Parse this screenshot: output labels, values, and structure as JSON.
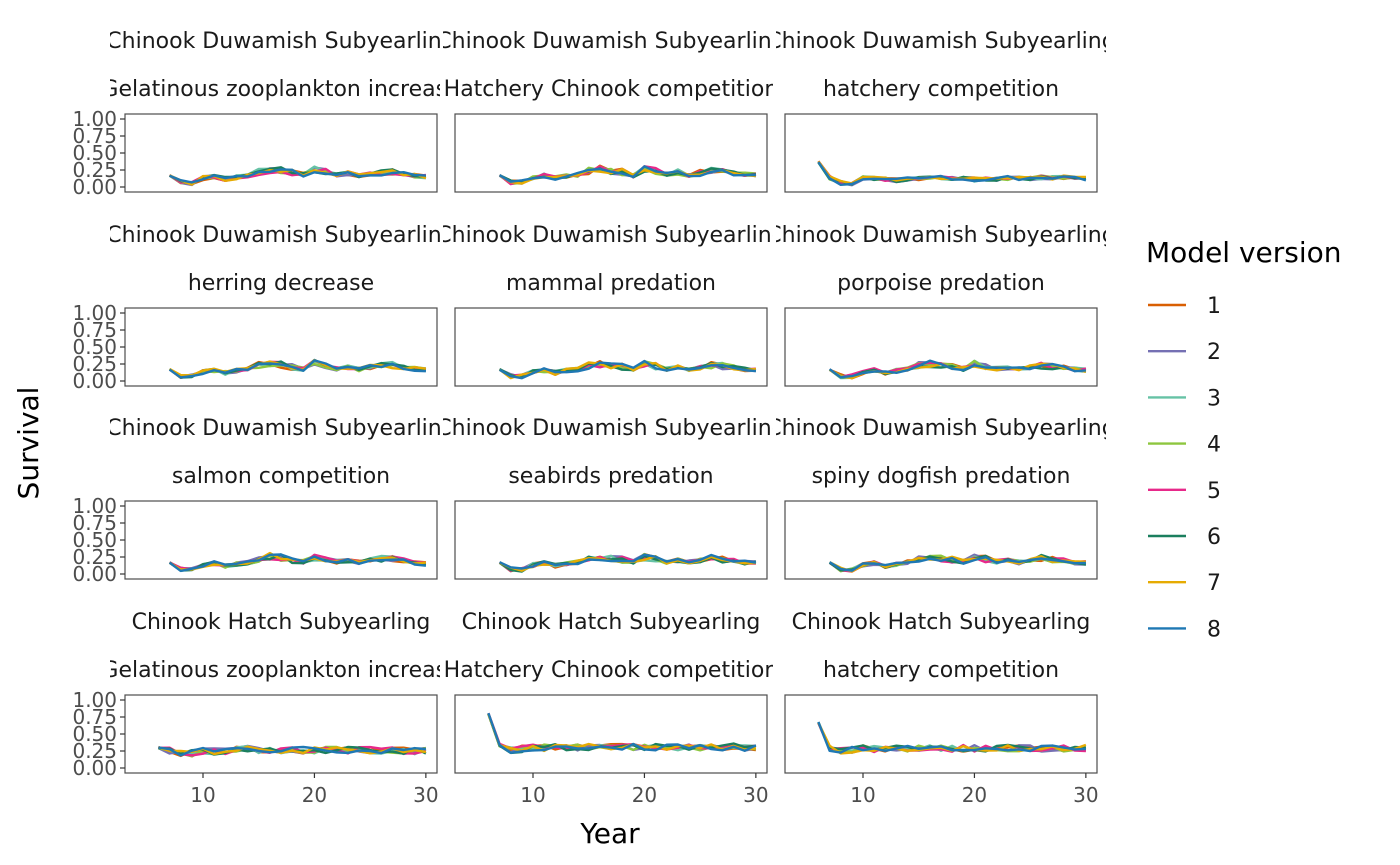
{
  "chart_data": {
    "type": "line",
    "xlabel": "Year",
    "ylabel": "Survival",
    "xlim": [
      3,
      31
    ],
    "ylim": [
      0,
      1
    ],
    "x_ticks": [
      10,
      20,
      30
    ],
    "y_ticks": [
      "0.00",
      "0.25",
      "0.50",
      "0.75",
      "1.00"
    ],
    "grid": false,
    "legend": {
      "title": "Model version",
      "placement": "right",
      "labels": [
        "1",
        "2",
        "3",
        "4",
        "5",
        "6",
        "7",
        "8"
      ],
      "colors": [
        "#D95F02",
        "#7570B3",
        "#66C2A5",
        "#8DC63F",
        "#E7298A",
        "#1B7F5E",
        "#E6AB02",
        "#1F78B4"
      ]
    },
    "panels": [
      {
        "strip1": "Chinook Duwamish Subyearling",
        "strip2": "Gelatinous zooplankton increase",
        "x": [
          7,
          8,
          9,
          10,
          11,
          12,
          13,
          14,
          15,
          16,
          17,
          18,
          19,
          20,
          21,
          22,
          23,
          24,
          25,
          26,
          27,
          28,
          29,
          30
        ],
        "base": [
          0.17,
          0.07,
          0.06,
          0.13,
          0.15,
          0.12,
          0.14,
          0.16,
          0.22,
          0.25,
          0.24,
          0.21,
          0.18,
          0.25,
          0.22,
          0.18,
          0.2,
          0.17,
          0.2,
          0.22,
          0.23,
          0.2,
          0.17,
          0.15
        ]
      },
      {
        "strip1": "Chinook Duwamish Subyearling",
        "strip2": "Hatchery Chinook competition",
        "x": [
          7,
          8,
          9,
          10,
          11,
          12,
          13,
          14,
          15,
          16,
          17,
          18,
          19,
          20,
          21,
          22,
          23,
          24,
          25,
          26,
          27,
          28,
          29,
          30
        ],
        "base": [
          0.17,
          0.07,
          0.08,
          0.14,
          0.17,
          0.13,
          0.16,
          0.18,
          0.24,
          0.27,
          0.24,
          0.22,
          0.17,
          0.26,
          0.23,
          0.19,
          0.21,
          0.18,
          0.21,
          0.25,
          0.24,
          0.2,
          0.18,
          0.17
        ]
      },
      {
        "strip1": "Chinook Duwamish Subyearling",
        "strip2": "hatchery competition",
        "x": [
          6,
          7,
          8,
          9,
          10,
          11,
          12,
          13,
          14,
          15,
          16,
          17,
          18,
          19,
          20,
          21,
          22,
          23,
          24,
          25,
          26,
          27,
          28,
          29,
          30
        ],
        "base": [
          0.37,
          0.14,
          0.06,
          0.05,
          0.13,
          0.13,
          0.11,
          0.1,
          0.12,
          0.13,
          0.14,
          0.14,
          0.13,
          0.12,
          0.11,
          0.11,
          0.12,
          0.13,
          0.13,
          0.13,
          0.14,
          0.14,
          0.14,
          0.13,
          0.12
        ]
      },
      {
        "strip1": "Chinook Duwamish Subyearling",
        "strip2": "herring decrease",
        "x": [
          7,
          8,
          9,
          10,
          11,
          12,
          13,
          14,
          15,
          16,
          17,
          18,
          19,
          20,
          21,
          22,
          23,
          24,
          25,
          26,
          27,
          28,
          29,
          30
        ],
        "base": [
          0.17,
          0.07,
          0.07,
          0.13,
          0.16,
          0.12,
          0.15,
          0.17,
          0.23,
          0.26,
          0.24,
          0.21,
          0.18,
          0.26,
          0.22,
          0.18,
          0.2,
          0.17,
          0.21,
          0.24,
          0.23,
          0.2,
          0.18,
          0.17
        ]
      },
      {
        "strip1": "Chinook Duwamish Subyearling",
        "strip2": "mammal predation",
        "x": [
          7,
          8,
          9,
          10,
          11,
          12,
          13,
          14,
          15,
          16,
          17,
          18,
          19,
          20,
          21,
          22,
          23,
          24,
          25,
          26,
          27,
          28,
          29,
          30
        ],
        "base": [
          0.17,
          0.07,
          0.07,
          0.13,
          0.16,
          0.12,
          0.15,
          0.17,
          0.23,
          0.25,
          0.23,
          0.21,
          0.18,
          0.25,
          0.22,
          0.18,
          0.2,
          0.17,
          0.2,
          0.23,
          0.22,
          0.2,
          0.17,
          0.16
        ]
      },
      {
        "strip1": "Chinook Duwamish Subyearling",
        "strip2": "porpoise predation",
        "x": [
          7,
          8,
          9,
          10,
          11,
          12,
          13,
          14,
          15,
          16,
          17,
          18,
          19,
          20,
          21,
          22,
          23,
          24,
          25,
          26,
          27,
          28,
          29,
          30
        ],
        "base": [
          0.17,
          0.07,
          0.07,
          0.13,
          0.16,
          0.12,
          0.15,
          0.17,
          0.23,
          0.25,
          0.23,
          0.21,
          0.18,
          0.25,
          0.22,
          0.18,
          0.2,
          0.17,
          0.2,
          0.23,
          0.22,
          0.2,
          0.17,
          0.16
        ]
      },
      {
        "strip1": "Chinook Duwamish Subyearling",
        "strip2": "salmon competition",
        "x": [
          7,
          8,
          9,
          10,
          11,
          12,
          13,
          14,
          15,
          16,
          17,
          18,
          19,
          20,
          21,
          22,
          23,
          24,
          25,
          26,
          27,
          28,
          29,
          30
        ],
        "base": [
          0.17,
          0.07,
          0.06,
          0.13,
          0.16,
          0.12,
          0.15,
          0.17,
          0.23,
          0.26,
          0.24,
          0.21,
          0.18,
          0.25,
          0.22,
          0.18,
          0.2,
          0.17,
          0.2,
          0.23,
          0.22,
          0.2,
          0.17,
          0.15
        ]
      },
      {
        "strip1": "Chinook Duwamish Subyearling",
        "strip2": "seabirds predation",
        "x": [
          7,
          8,
          9,
          10,
          11,
          12,
          13,
          14,
          15,
          16,
          17,
          18,
          19,
          20,
          21,
          22,
          23,
          24,
          25,
          26,
          27,
          28,
          29,
          30
        ],
        "base": [
          0.17,
          0.07,
          0.06,
          0.13,
          0.16,
          0.12,
          0.15,
          0.17,
          0.23,
          0.25,
          0.23,
          0.21,
          0.18,
          0.25,
          0.22,
          0.18,
          0.2,
          0.17,
          0.2,
          0.23,
          0.22,
          0.2,
          0.17,
          0.16
        ]
      },
      {
        "strip1": "Chinook Duwamish Subyearling",
        "strip2": "spiny dogfish predation",
        "x": [
          7,
          8,
          9,
          10,
          11,
          12,
          13,
          14,
          15,
          16,
          17,
          18,
          19,
          20,
          21,
          22,
          23,
          24,
          25,
          26,
          27,
          28,
          29,
          30
        ],
        "base": [
          0.17,
          0.07,
          0.06,
          0.13,
          0.16,
          0.12,
          0.15,
          0.17,
          0.23,
          0.25,
          0.23,
          0.21,
          0.18,
          0.25,
          0.22,
          0.18,
          0.2,
          0.17,
          0.2,
          0.23,
          0.22,
          0.2,
          0.17,
          0.16
        ]
      },
      {
        "strip1": "Chinook Hatch Subyearling",
        "strip2": "Gelatinous zooplankton increase",
        "x": [
          6,
          7,
          8,
          9,
          10,
          11,
          12,
          13,
          14,
          15,
          16,
          17,
          18,
          19,
          20,
          21,
          22,
          23,
          24,
          25,
          26,
          27,
          28,
          29,
          30
        ],
        "base": [
          0.3,
          0.25,
          0.22,
          0.22,
          0.25,
          0.24,
          0.25,
          0.27,
          0.28,
          0.27,
          0.26,
          0.26,
          0.26,
          0.26,
          0.26,
          0.26,
          0.26,
          0.26,
          0.26,
          0.26,
          0.26,
          0.26,
          0.25,
          0.25,
          0.25
        ]
      },
      {
        "strip1": "Chinook Hatch Subyearling",
        "strip2": "Hatchery Chinook competition",
        "x": [
          6,
          7,
          8,
          9,
          10,
          11,
          12,
          13,
          14,
          15,
          16,
          17,
          18,
          19,
          20,
          21,
          22,
          23,
          24,
          25,
          26,
          27,
          28,
          29,
          30
        ],
        "base": [
          0.8,
          0.31,
          0.26,
          0.28,
          0.3,
          0.3,
          0.31,
          0.31,
          0.3,
          0.31,
          0.31,
          0.31,
          0.31,
          0.31,
          0.31,
          0.31,
          0.31,
          0.31,
          0.3,
          0.31,
          0.31,
          0.31,
          0.31,
          0.3,
          0.3
        ]
      },
      {
        "strip1": "Chinook Hatch Subyearling",
        "strip2": "hatchery competition",
        "x": [
          6,
          7,
          8,
          9,
          10,
          11,
          12,
          13,
          14,
          15,
          16,
          17,
          18,
          19,
          20,
          21,
          22,
          23,
          24,
          25,
          26,
          27,
          28,
          29,
          30
        ],
        "base": [
          0.67,
          0.3,
          0.25,
          0.27,
          0.29,
          0.28,
          0.28,
          0.28,
          0.29,
          0.29,
          0.29,
          0.29,
          0.29,
          0.29,
          0.29,
          0.29,
          0.29,
          0.29,
          0.29,
          0.29,
          0.29,
          0.29,
          0.29,
          0.29,
          0.29
        ]
      }
    ]
  }
}
